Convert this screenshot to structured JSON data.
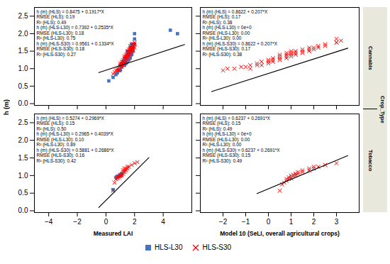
{
  "chart_data": [
    {
      "type": "scatter",
      "ylabel": "h (m)",
      "legend": "bottom",
      "grid": false,
      "tick_labels": "y",
      "xlim": [
        -5,
        6
      ],
      "xticks": [
        -4,
        -2,
        0,
        2,
        4
      ],
      "ylim": [
        -0.05,
        2.75
      ],
      "yticks": [
        {
          "value": 0,
          "label": "0.0"
        },
        0.5,
        {
          "value": 1,
          "label": "1.0"
        },
        1.5,
        {
          "value": 2,
          "label": "2.0"
        },
        2.5
      ],
      "series": [
        {
          "name": "HLS-L30",
          "color": "#4472C4",
          "marker": "square",
          "values": [
            [
              0.2,
              0.65
            ],
            [
              0.5,
              0.75
            ],
            [
              0.7,
              0.83
            ],
            [
              0.8,
              0.88
            ],
            [
              0.9,
              0.95
            ],
            [
              1.0,
              0.95
            ],
            [
              1.0,
              1.1
            ],
            [
              1.1,
              1.05
            ],
            [
              1.1,
              1.15
            ],
            [
              1.2,
              1.1
            ],
            [
              1.2,
              1.2
            ],
            [
              1.3,
              1.1
            ],
            [
              1.3,
              1.2
            ],
            [
              1.3,
              1.3
            ],
            [
              1.4,
              1.15
            ],
            [
              1.4,
              1.25
            ],
            [
              1.4,
              1.35
            ],
            [
              1.5,
              1.2
            ],
            [
              1.5,
              1.3
            ],
            [
              1.5,
              1.4
            ],
            [
              1.5,
              1.5
            ],
            [
              1.6,
              1.25
            ],
            [
              1.6,
              1.35
            ],
            [
              1.6,
              1.45
            ],
            [
              1.7,
              1.3
            ],
            [
              1.7,
              1.4
            ],
            [
              1.7,
              1.5
            ],
            [
              1.7,
              1.6
            ],
            [
              1.8,
              1.4
            ],
            [
              1.8,
              1.55
            ],
            [
              1.8,
              1.7
            ],
            [
              1.9,
              1.5
            ],
            [
              1.9,
              1.6
            ],
            [
              2.0,
              1.7
            ],
            [
              2.0,
              1.85
            ],
            [
              2.0,
              2.0
            ],
            [
              4.5,
              2.1
            ],
            [
              5.0,
              2.0
            ]
          ]
        },
        {
          "name": "HLS-S30",
          "color": "#FF0000",
          "marker": "x",
          "values": [
            [
              0.5,
              0.85
            ],
            [
              0.6,
              0.9
            ],
            [
              0.7,
              0.95
            ],
            [
              0.8,
              0.95
            ],
            [
              0.8,
              1.0
            ],
            [
              0.9,
              0.95
            ],
            [
              0.9,
              1.0
            ],
            [
              1.0,
              1.0
            ],
            [
              1.0,
              1.05
            ],
            [
              1.0,
              1.1
            ],
            [
              1.0,
              1.15
            ],
            [
              1.1,
              1.05
            ],
            [
              1.1,
              1.1
            ],
            [
              1.1,
              1.15
            ],
            [
              1.1,
              1.2
            ],
            [
              1.2,
              1.1
            ],
            [
              1.2,
              1.2
            ],
            [
              1.2,
              1.25
            ],
            [
              1.3,
              1.15
            ],
            [
              1.3,
              1.2
            ],
            [
              1.3,
              1.3
            ],
            [
              1.3,
              1.35
            ],
            [
              1.4,
              1.2
            ],
            [
              1.4,
              1.3
            ],
            [
              1.4,
              1.35
            ],
            [
              1.4,
              1.4
            ],
            [
              1.5,
              1.3
            ],
            [
              1.5,
              1.4
            ],
            [
              1.5,
              1.45
            ],
            [
              1.5,
              1.5
            ],
            [
              1.6,
              1.35
            ],
            [
              1.6,
              1.4
            ],
            [
              1.6,
              1.45
            ],
            [
              1.6,
              1.5
            ],
            [
              1.6,
              1.55
            ],
            [
              1.7,
              1.4
            ],
            [
              1.7,
              1.5
            ],
            [
              1.7,
              1.55
            ],
            [
              1.7,
              1.6
            ],
            [
              1.7,
              1.65
            ],
            [
              1.8,
              1.45
            ],
            [
              1.8,
              1.5
            ],
            [
              1.8,
              1.55
            ],
            [
              1.8,
              1.6
            ],
            [
              1.8,
              1.65
            ],
            [
              1.8,
              1.7
            ],
            [
              1.9,
              1.55
            ],
            [
              1.9,
              1.6
            ],
            [
              1.9,
              1.65
            ],
            [
              1.9,
              1.7
            ],
            [
              2.0,
              1.6
            ],
            [
              2.0,
              1.7
            ],
            [
              2.0,
              1.75
            ]
          ]
        }
      ],
      "fit": {
        "x": [
          -0.5,
          5.5
        ],
        "y": [
          0.8894,
          1.6898
        ],
        "color": "black"
      },
      "annotations": [
        "h (m) (HLS) = 0.8475 + 0.1917*X",
        "RMSE (HLS): 0.19",
        "R² (HLS): 0.49",
        "h (m) (HLS-L30) = 0.7392 + 0.2535*X",
        "RMSE (HLS-L30): 0.18",
        "R² (HLS-L30): 0.75",
        "h (m) (HLS-S30) = 0.9561 + 0.1334*X",
        "RMSE (HLS-S30): 0.18",
        "R² (HLS-S30): 0.27"
      ]
    },
    {
      "type": "scatter",
      "y2label": "Cannabis",
      "facet_title": "Crop_Type",
      "grid": false,
      "tick_labels": false,
      "xlim": [
        -3,
        4
      ],
      "xticks": [
        -2,
        -1,
        0,
        1,
        2,
        3
      ],
      "ylim": [
        -0.05,
        2.75
      ],
      "yticks": [
        {
          "value": 0,
          "label": "0.0"
        },
        0.5,
        {
          "value": 1,
          "label": "1.0"
        },
        1.5,
        {
          "value": 2,
          "label": "2.0"
        },
        2.5
      ],
      "series": [
        {
          "name": "HLS-S30",
          "color": "#FF0000",
          "marker": "x",
          "values": [
            [
              -2.0,
              0.95
            ],
            [
              -1.8,
              1.0
            ],
            [
              -1.5,
              1.0
            ],
            [
              -1.2,
              1.05
            ],
            [
              -1.0,
              1.05
            ],
            [
              -0.8,
              1.0
            ],
            [
              -0.8,
              1.1
            ],
            [
              -0.5,
              1.1
            ],
            [
              -0.5,
              1.15
            ],
            [
              -0.3,
              1.1
            ],
            [
              -0.3,
              1.2
            ],
            [
              0.0,
              1.15
            ],
            [
              0.0,
              1.2
            ],
            [
              0.0,
              1.25
            ],
            [
              0.2,
              1.2
            ],
            [
              0.2,
              1.25
            ],
            [
              0.2,
              1.3
            ],
            [
              0.5,
              1.25
            ],
            [
              0.5,
              1.3
            ],
            [
              0.5,
              1.35
            ],
            [
              0.5,
              1.4
            ],
            [
              0.8,
              1.3
            ],
            [
              0.8,
              1.35
            ],
            [
              0.8,
              1.4
            ],
            [
              0.8,
              1.45
            ],
            [
              1.0,
              1.35
            ],
            [
              1.0,
              1.4
            ],
            [
              1.0,
              1.45
            ],
            [
              1.0,
              1.5
            ],
            [
              1.2,
              1.4
            ],
            [
              1.2,
              1.45
            ],
            [
              1.2,
              1.5
            ],
            [
              1.5,
              1.45
            ],
            [
              1.5,
              1.5
            ],
            [
              1.5,
              1.55
            ],
            [
              1.8,
              1.5
            ],
            [
              1.8,
              1.55
            ],
            [
              1.8,
              1.6
            ],
            [
              2.0,
              1.55
            ],
            [
              2.0,
              1.6
            ],
            [
              2.2,
              1.6
            ],
            [
              2.2,
              1.65
            ],
            [
              2.5,
              1.65
            ],
            [
              2.5,
              1.7
            ],
            [
              3.0,
              1.75
            ],
            [
              3.2,
              1.8
            ],
            [
              3.0,
              1.75
            ],
            [
              3.0,
              1.85
            ]
          ]
        }
      ],
      "fit": {
        "x": [
          -2.5,
          3.5
        ],
        "y": [
          0.3447,
          1.5867
        ],
        "color": "black"
      },
      "annotations": [
        "h (m) (HLS) = 0.8622 + 0.207*X",
        "RMSE (HLS): 0.17",
        "R² (HLS): 0.38",
        "h (m) (HLS-L30) = 0e+0",
        "RMSE (HLS-L30): 0.00",
        "R² (HLS-L30): 0.00",
        "h (m) (HLS-S30) = 0.8622 + 0.207*X",
        "RMSE (HLS-S30): 0.17",
        "R² (HLS-S30): 0.38"
      ]
    },
    {
      "type": "scatter",
      "xlabel": "Measured LAI",
      "grid": false,
      "xlim": [
        -5,
        6
      ],
      "xticks": [
        -4,
        -2,
        0,
        2,
        4
      ],
      "ylim": [
        -0.05,
        2.75
      ],
      "yticks": [
        {
          "value": 0,
          "label": "0.0"
        },
        0.5,
        {
          "value": 1,
          "label": "1.0"
        },
        1.5,
        {
          "value": 2,
          "label": "2.0"
        },
        2.5
      ],
      "series": [
        {
          "name": "HLS-L30",
          "color": "#4472C4",
          "marker": "square",
          "values": [
            [
              0.5,
              0.6
            ],
            [
              0.7,
              0.95
            ],
            [
              0.8,
              0.98
            ],
            [
              0.9,
              0.98
            ],
            [
              1.0,
              1.0
            ],
            [
              1.0,
              1.02
            ],
            [
              1.1,
              1.02
            ],
            [
              1.1,
              1.05
            ]
          ]
        },
        {
          "name": "HLS-S30",
          "color": "#FF0000",
          "marker": "x",
          "values": [
            [
              0.5,
              0.57
            ],
            [
              0.6,
              0.8
            ],
            [
              0.7,
              0.9
            ],
            [
              0.8,
              0.92
            ],
            [
              0.8,
              0.95
            ],
            [
              0.9,
              0.95
            ],
            [
              0.9,
              0.98
            ],
            [
              1.0,
              0.98
            ],
            [
              1.0,
              1.0
            ],
            [
              1.0,
              1.02
            ],
            [
              1.1,
              1.0
            ],
            [
              1.1,
              1.05
            ],
            [
              1.2,
              1.05
            ],
            [
              1.2,
              1.1
            ],
            [
              1.2,
              1.15
            ],
            [
              1.3,
              1.1
            ],
            [
              1.3,
              1.15
            ],
            [
              1.3,
              1.2
            ],
            [
              1.4,
              1.15
            ],
            [
              1.4,
              1.2
            ],
            [
              1.5,
              1.2
            ],
            [
              1.5,
              1.25
            ],
            [
              1.6,
              1.25
            ],
            [
              1.8,
              1.3
            ],
            [
              2.0,
              1.35
            ],
            [
              2.2,
              1.38
            ]
          ]
        }
      ],
      "fit": {
        "x": [
          -0.5,
          3.0
        ],
        "y": [
          0.09455,
          1.5082
        ],
        "color": "black"
      },
      "annotations": [
        "h (m) (HLS) = 0.5274 + 0.2969*X",
        "RMSE (HLS): 0.15",
        "R² (HLS): 0.50",
        "h (m) (HLS-L30) = 0.2965 + 0.4039*X",
        "RMSE (HLS-L30): 0.10",
        "R² (HLS-L30): 0.89",
        "h (m) (HLS-S30) = 0.5881 + 0.2686*X",
        "RMSE (HLS-S30): 0.16",
        "R² (HLS-S30): 0.42"
      ]
    },
    {
      "type": "scatter",
      "xlabel": "Model 10 (SeLI, overall agricultural crops)",
      "y2label": "Tobacco",
      "grid": false,
      "tick_labels": "x",
      "xlim": [
        -3,
        4
      ],
      "xticks": [
        -2,
        -1,
        0,
        1,
        2,
        3
      ],
      "ylim": [
        -0.05,
        2.75
      ],
      "yticks": [
        {
          "value": 0,
          "label": "0.0"
        },
        0.5,
        {
          "value": 1,
          "label": "1.0"
        },
        1.5,
        {
          "value": 2,
          "label": "2.0"
        },
        2.5
      ],
      "series": [
        {
          "name": "HLS-S30",
          "color": "#FF0000",
          "marker": "x",
          "values": [
            [
              0.5,
              0.57
            ],
            [
              0.6,
              0.75
            ],
            [
              0.7,
              0.8
            ],
            [
              0.8,
              0.85
            ],
            [
              0.8,
              0.9
            ],
            [
              0.9,
              0.9
            ],
            [
              0.9,
              0.95
            ],
            [
              1.0,
              0.92
            ],
            [
              1.0,
              0.95
            ],
            [
              1.0,
              1.0
            ],
            [
              1.1,
              0.98
            ],
            [
              1.1,
              1.02
            ],
            [
              1.2,
              1.0
            ],
            [
              1.2,
              1.05
            ],
            [
              1.3,
              1.05
            ],
            [
              1.3,
              1.1
            ],
            [
              1.5,
              1.1
            ],
            [
              1.5,
              1.15
            ],
            [
              1.8,
              1.15
            ],
            [
              1.8,
              1.2
            ],
            [
              2.0,
              1.2
            ],
            [
              2.0,
              1.25
            ],
            [
              2.2,
              1.25
            ],
            [
              2.5,
              1.3
            ],
            [
              3.0,
              1.35
            ]
          ]
        }
      ],
      "fit": {
        "x": [
          -0.5,
          3.5
        ],
        "y": [
          0.48915,
          1.56555
        ],
        "color": "black"
      },
      "annotations": [
        "h (m) (HLS) = 0.6237 + 0.2691*X",
        "RMSE (HLS): 0.15",
        "R² (HLS): 0.49",
        "h (m) (HLS-L30) = 0e+0",
        "RMSE (HLS-L30): 0.00",
        "R² (HLS-L30): 0.00",
        "h (m) (HLS-S30) = 0.6237 + 0.2691*X",
        "RMSE (HLS-S30): 0.15",
        "R² (HLS-S30): 0.49"
      ]
    }
  ]
}
